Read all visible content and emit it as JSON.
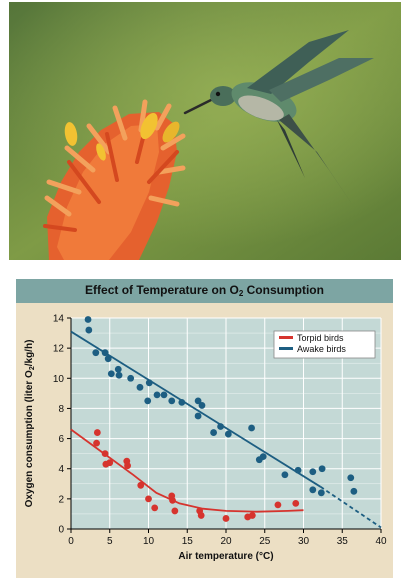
{
  "photo": {
    "subject": "hummingbird-feeding-on-flower"
  },
  "chart_data": {
    "type": "scatter",
    "title_prefix": "Effect of Temperature on O",
    "title_subscript": "2",
    "title_suffix": " Consumption",
    "xlabel": "Air temperature (°C)",
    "ylabel_prefix": "Oxygen consumption (liter O",
    "ylabel_subscript": "2",
    "ylabel_suffix": "/kg/h)",
    "xlim": [
      0,
      40
    ],
    "ylim": [
      0,
      14
    ],
    "x_ticks": [
      0,
      5,
      10,
      15,
      20,
      25,
      30,
      35,
      40
    ],
    "y_ticks": [
      0,
      2,
      4,
      6,
      8,
      10,
      12,
      14
    ],
    "grid": true,
    "legend_position": "top-right",
    "series": [
      {
        "name": "Torpid birds",
        "color": "#d6342e",
        "points": [
          [
            3.4,
            6.4
          ],
          [
            3.3,
            5.7
          ],
          [
            4.4,
            5.0
          ],
          [
            4.5,
            4.3
          ],
          [
            5.0,
            4.4
          ],
          [
            7.2,
            4.5
          ],
          [
            7.3,
            4.2
          ],
          [
            9.0,
            2.9
          ],
          [
            10.0,
            2.0
          ],
          [
            10.8,
            1.4
          ],
          [
            13.0,
            2.2
          ],
          [
            13.1,
            1.9
          ],
          [
            13.4,
            1.2
          ],
          [
            16.6,
            1.2
          ],
          [
            16.8,
            0.9
          ],
          [
            20.0,
            0.7
          ],
          [
            22.8,
            0.8
          ],
          [
            23.4,
            0.9
          ],
          [
            26.7,
            1.6
          ],
          [
            29.0,
            1.7
          ]
        ],
        "fit_curve": [
          [
            0,
            6.6
          ],
          [
            4,
            5.1
          ],
          [
            8,
            3.6
          ],
          [
            11,
            2.4
          ],
          [
            14,
            1.7
          ],
          [
            17,
            1.35
          ],
          [
            20,
            1.2
          ],
          [
            24,
            1.15
          ],
          [
            28,
            1.2
          ],
          [
            30,
            1.25
          ]
        ]
      },
      {
        "name": "Awake birds",
        "color": "#1d5e82",
        "points": [
          [
            2.2,
            13.9
          ],
          [
            2.3,
            13.2
          ],
          [
            3.2,
            11.7
          ],
          [
            4.4,
            11.7
          ],
          [
            4.8,
            11.3
          ],
          [
            5.2,
            10.3
          ],
          [
            6.1,
            10.6
          ],
          [
            6.2,
            10.2
          ],
          [
            7.7,
            10.0
          ],
          [
            8.9,
            9.4
          ],
          [
            9.9,
            8.5
          ],
          [
            10.1,
            9.7
          ],
          [
            11.1,
            8.9
          ],
          [
            12.0,
            8.9
          ],
          [
            13.0,
            8.5
          ],
          [
            14.3,
            8.4
          ],
          [
            16.4,
            8.5
          ],
          [
            16.9,
            8.2
          ],
          [
            16.4,
            7.5
          ],
          [
            18.4,
            6.4
          ],
          [
            19.3,
            6.8
          ],
          [
            20.3,
            6.3
          ],
          [
            23.3,
            6.7
          ],
          [
            24.3,
            4.6
          ],
          [
            24.8,
            4.8
          ],
          [
            27.6,
            3.6
          ],
          [
            29.3,
            3.9
          ],
          [
            31.2,
            3.8
          ],
          [
            32.4,
            4.0
          ],
          [
            31.2,
            2.6
          ],
          [
            32.3,
            2.4
          ],
          [
            36.1,
            3.4
          ],
          [
            36.5,
            2.5
          ]
        ],
        "fit_line_solid": [
          [
            0,
            13.1
          ],
          [
            32.2,
            2.8
          ]
        ],
        "fit_line_dashed": [
          [
            32.2,
            2.8
          ],
          [
            40,
            0.1
          ]
        ]
      }
    ]
  }
}
